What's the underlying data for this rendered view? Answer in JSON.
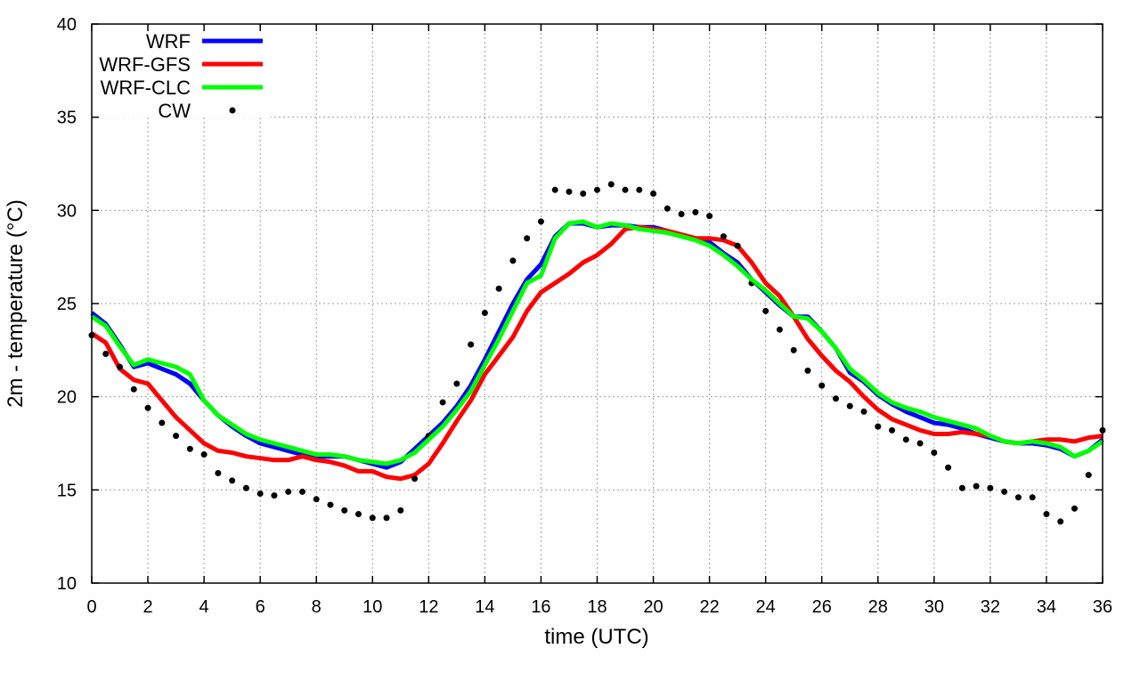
{
  "chart_data": {
    "type": "line",
    "title": "",
    "xlabel": "time (UTC)",
    "ylabel": "2m - temperature (°C)",
    "xlim": [
      0,
      36
    ],
    "ylim": [
      10,
      40
    ],
    "xticks": [
      0,
      2,
      4,
      6,
      8,
      10,
      12,
      14,
      16,
      18,
      20,
      22,
      24,
      26,
      28,
      30,
      32,
      34,
      36
    ],
    "yticks": [
      10,
      15,
      20,
      25,
      30,
      35,
      40
    ],
    "grid": true,
    "legend_position": "top-left",
    "x": [
      0,
      0.5,
      1,
      1.5,
      2,
      2.5,
      3,
      3.5,
      4,
      4.5,
      5,
      5.5,
      6,
      6.5,
      7,
      7.5,
      8,
      8.5,
      9,
      9.5,
      10,
      10.5,
      11,
      11.5,
      12,
      12.5,
      13,
      13.5,
      14,
      14.5,
      15,
      15.5,
      16,
      16.5,
      17,
      17.5,
      18,
      18.5,
      19,
      19.5,
      20,
      20.5,
      21,
      21.5,
      22,
      22.5,
      23,
      23.5,
      24,
      24.5,
      25,
      25.5,
      26,
      26.5,
      27,
      27.5,
      28,
      28.5,
      29,
      29.5,
      30,
      30.5,
      31,
      31.5,
      32,
      32.5,
      33,
      33.5,
      34,
      34.5,
      35,
      35.5,
      36
    ],
    "series": [
      {
        "name": "WRF",
        "style": "line",
        "color": "#0000ff",
        "values": [
          24.5,
          23.9,
          22.8,
          21.6,
          21.8,
          21.5,
          21.2,
          20.7,
          19.8,
          19.0,
          18.4,
          17.9,
          17.5,
          17.3,
          17.1,
          16.9,
          16.8,
          16.8,
          16.8,
          16.6,
          16.4,
          16.2,
          16.5,
          17.2,
          17.9,
          18.6,
          19.5,
          20.6,
          22.0,
          23.5,
          25.0,
          26.3,
          27.1,
          28.6,
          29.3,
          29.3,
          29.1,
          29.2,
          29.2,
          29.1,
          29.1,
          28.9,
          28.7,
          28.5,
          28.3,
          27.7,
          27.2,
          26.3,
          25.6,
          24.9,
          24.3,
          24.3,
          23.5,
          22.6,
          21.3,
          20.8,
          20.1,
          19.6,
          19.2,
          18.9,
          18.6,
          18.5,
          18.3,
          18.0,
          17.8,
          17.6,
          17.5,
          17.5,
          17.4,
          17.2,
          16.8,
          17.1,
          17.7
        ]
      },
      {
        "name": "WRF-GFS",
        "style": "line",
        "color": "#ff0000",
        "values": [
          23.4,
          22.9,
          21.5,
          20.9,
          20.7,
          19.8,
          18.9,
          18.2,
          17.5,
          17.1,
          17.0,
          16.8,
          16.7,
          16.6,
          16.6,
          16.8,
          16.6,
          16.5,
          16.3,
          16.0,
          16.0,
          15.7,
          15.6,
          15.8,
          16.4,
          17.5,
          18.7,
          19.8,
          21.2,
          22.2,
          23.2,
          24.6,
          25.6,
          26.1,
          26.6,
          27.2,
          27.6,
          28.2,
          29.0,
          29.1,
          29.0,
          28.9,
          28.7,
          28.5,
          28.5,
          28.4,
          28.1,
          27.2,
          26.1,
          25.4,
          24.3,
          23.1,
          22.2,
          21.4,
          20.8,
          20.0,
          19.3,
          18.8,
          18.5,
          18.2,
          18.0,
          18.0,
          18.1,
          18.0,
          17.9,
          17.6,
          17.5,
          17.6,
          17.7,
          17.7,
          17.6,
          17.8,
          17.9
        ]
      },
      {
        "name": "WRF-CLC",
        "style": "line",
        "color": "#00ff00",
        "values": [
          24.3,
          23.8,
          22.7,
          21.7,
          22.0,
          21.8,
          21.6,
          21.2,
          19.8,
          19.0,
          18.5,
          18.0,
          17.7,
          17.5,
          17.3,
          17.1,
          16.9,
          16.9,
          16.8,
          16.6,
          16.5,
          16.4,
          16.6,
          17.0,
          17.7,
          18.4,
          19.3,
          20.3,
          21.7,
          23.1,
          24.6,
          26.1,
          26.5,
          28.5,
          29.3,
          29.4,
          29.1,
          29.3,
          29.2,
          29.0,
          28.9,
          28.8,
          28.6,
          28.4,
          28.1,
          27.6,
          27.0,
          26.3,
          25.7,
          25.0,
          24.3,
          24.2,
          23.5,
          22.6,
          21.5,
          20.9,
          20.2,
          19.7,
          19.4,
          19.2,
          18.9,
          18.7,
          18.5,
          18.3,
          17.9,
          17.6,
          17.5,
          17.6,
          17.5,
          17.3,
          16.8,
          17.1,
          17.6
        ]
      },
      {
        "name": "CW",
        "style": "points",
        "color": "#000000",
        "values": [
          23.3,
          22.3,
          21.6,
          20.4,
          19.4,
          18.6,
          17.9,
          17.2,
          16.9,
          15.9,
          15.5,
          15.1,
          14.8,
          14.7,
          14.9,
          14.9,
          14.5,
          14.2,
          13.9,
          13.7,
          13.5,
          13.5,
          13.9,
          15.6,
          17.9,
          19.7,
          20.7,
          22.8,
          24.5,
          25.8,
          27.3,
          28.5,
          29.4,
          31.1,
          31.0,
          30.9,
          31.1,
          31.4,
          31.1,
          31.1,
          30.9,
          30.1,
          29.8,
          29.9,
          29.7,
          28.6,
          28.1,
          26.1,
          24.6,
          23.6,
          22.5,
          21.4,
          20.6,
          19.9,
          19.5,
          19.2,
          18.4,
          18.2,
          17.7,
          17.5,
          17.0,
          16.2,
          15.1,
          15.2,
          15.1,
          14.9,
          14.6,
          14.6,
          13.7,
          13.3,
          14.0,
          15.8,
          18.2
        ]
      }
    ]
  }
}
